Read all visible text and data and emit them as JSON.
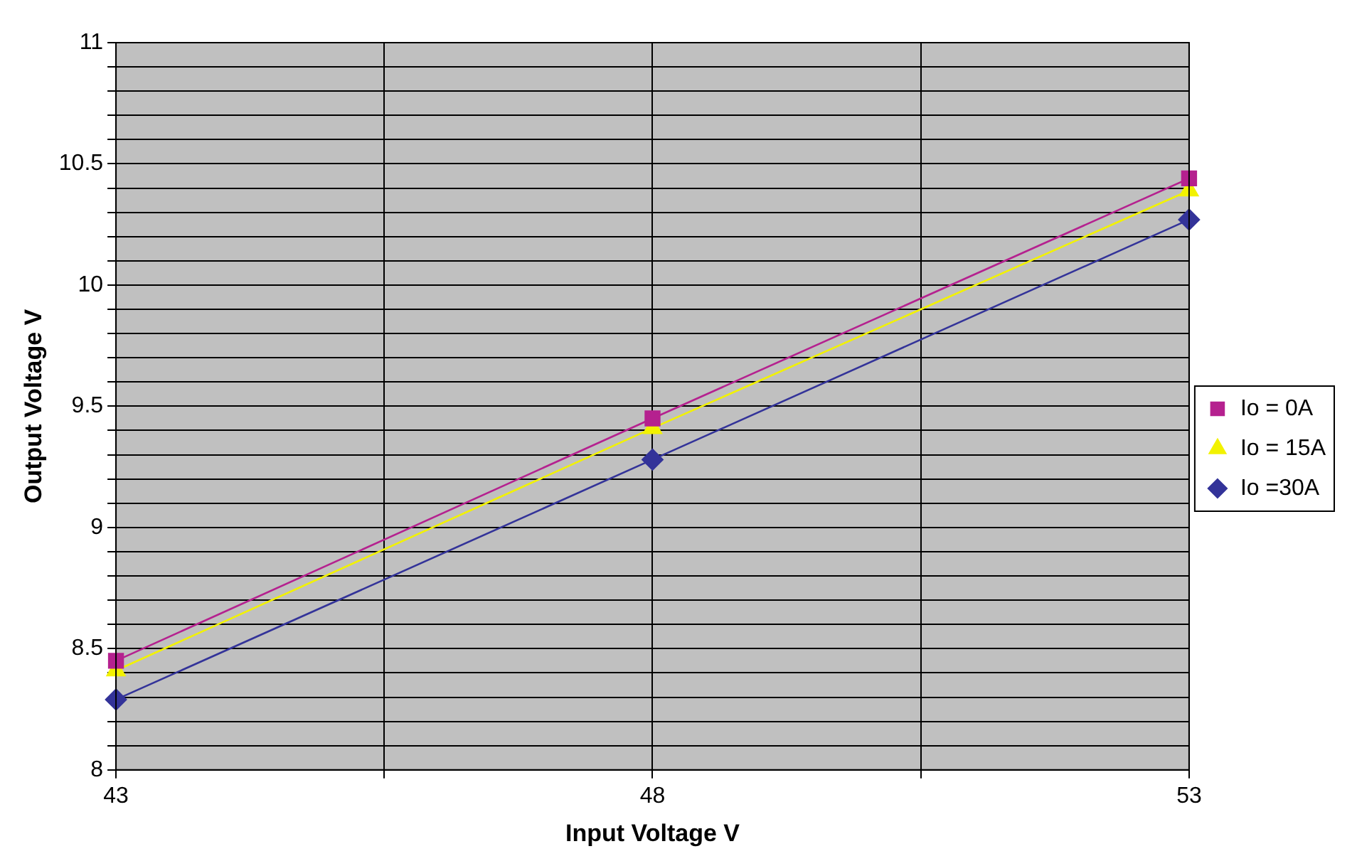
{
  "chart_data": {
    "type": "line",
    "xlabel": "Input Voltage V",
    "ylabel": "Output Voltage V",
    "x": [
      43,
      48,
      53
    ],
    "series": [
      {
        "name": "Io = 0A",
        "color": "#b5218f",
        "marker": "square",
        "values": [
          8.45,
          9.45,
          10.44
        ]
      },
      {
        "name": "Io = 15A",
        "color": "#f2f200",
        "marker": "triangle",
        "values": [
          8.41,
          9.41,
          10.39
        ]
      },
      {
        "name": "Io =30A",
        "color": "#333399",
        "marker": "diamond",
        "values": [
          8.29,
          9.28,
          10.27
        ]
      }
    ],
    "xlim": [
      43,
      53
    ],
    "xticks": [
      43,
      {
        "value": 45.5,
        "label": null
      },
      48,
      {
        "value": 50.5,
        "label": null
      },
      53
    ],
    "ylim": [
      8,
      11
    ],
    "yticks": [
      8,
      {
        "value": 8.1,
        "label": null
      },
      {
        "value": 8.2,
        "label": null
      },
      {
        "value": 8.3,
        "label": null
      },
      {
        "value": 8.4,
        "label": null
      },
      8.5,
      {
        "value": 8.6,
        "label": null
      },
      {
        "value": 8.7,
        "label": null
      },
      {
        "value": 8.8,
        "label": null
      },
      {
        "value": 8.9,
        "label": null
      },
      9,
      {
        "value": 9.1,
        "label": null
      },
      {
        "value": 9.2,
        "label": null
      },
      {
        "value": 9.3,
        "label": null
      },
      {
        "value": 9.4,
        "label": null
      },
      9.5,
      {
        "value": 9.6,
        "label": null
      },
      {
        "value": 9.7,
        "label": null
      },
      {
        "value": 9.8,
        "label": null
      },
      {
        "value": 9.9,
        "label": null
      },
      10,
      {
        "value": 10.1,
        "label": null
      },
      {
        "value": 10.2,
        "label": null
      },
      {
        "value": 10.3,
        "label": null
      },
      {
        "value": 10.4,
        "label": null
      },
      10.5,
      {
        "value": 10.6,
        "label": null
      },
      {
        "value": 10.7,
        "label": null
      },
      {
        "value": 10.8,
        "label": null
      },
      {
        "value": 10.9,
        "label": null
      },
      11
    ],
    "grid": true,
    "legend": "right",
    "line_style": "solid"
  }
}
